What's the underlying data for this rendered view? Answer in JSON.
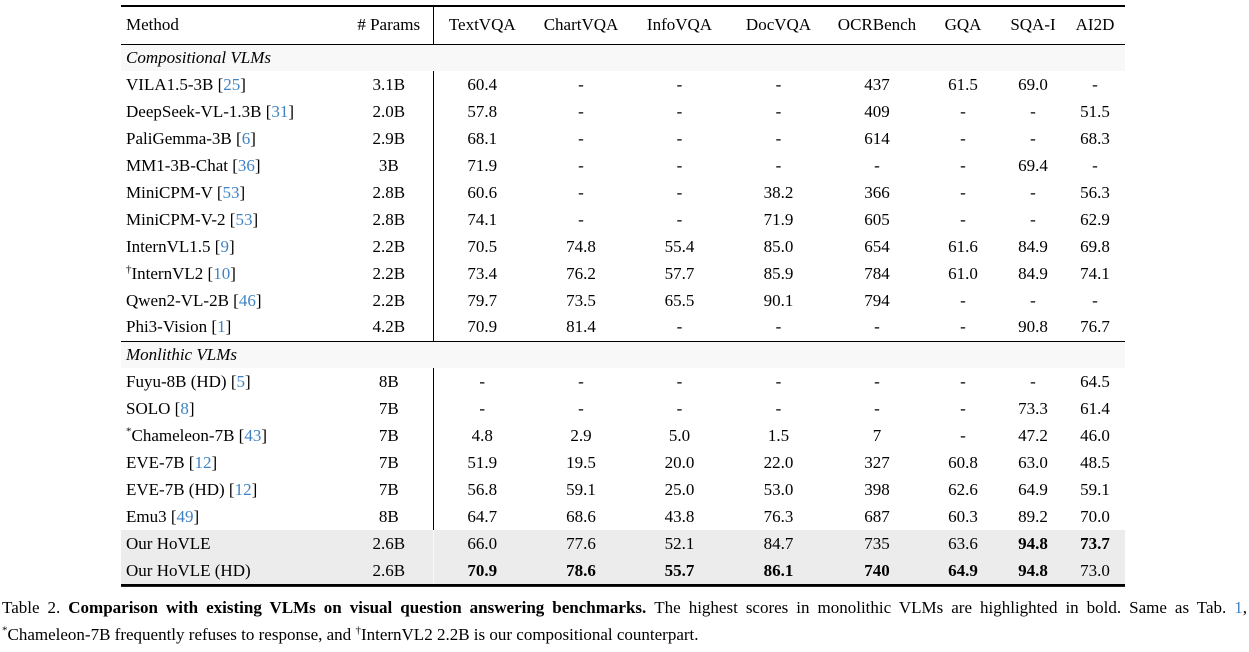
{
  "colors": {
    "citation_blue": "#4083C4",
    "highlight_row_bg": "#ececec",
    "section_row_bg": "#f8f8f8"
  },
  "table": {
    "columns": [
      "Method",
      "# Params",
      "TextVQA",
      "ChartVQA",
      "InfoVQA",
      "DocVQA",
      "OCRBench",
      "GQA",
      "SQA-I",
      "AI2D"
    ],
    "sections": [
      {
        "label": "Compositional VLMs",
        "rows": [
          {
            "method": "VILA1.5-3B",
            "sup": "",
            "cite": "25",
            "params": "3.1B",
            "scores": [
              "60.4",
              "-",
              "-",
              "-",
              "437",
              "61.5",
              "69.0",
              "-"
            ],
            "bold": [],
            "highlight": false
          },
          {
            "method": "DeepSeek-VL-1.3B",
            "sup": "",
            "cite": "31",
            "params": "2.0B",
            "scores": [
              "57.8",
              "-",
              "-",
              "-",
              "409",
              "-",
              "-",
              "51.5"
            ],
            "bold": [],
            "highlight": false
          },
          {
            "method": "PaliGemma-3B",
            "sup": "",
            "cite": "6",
            "params": "2.9B",
            "scores": [
              "68.1",
              "-",
              "-",
              "-",
              "614",
              "-",
              "-",
              "68.3"
            ],
            "bold": [],
            "highlight": false
          },
          {
            "method": "MM1-3B-Chat",
            "sup": "",
            "cite": "36",
            "params": "3B",
            "scores": [
              "71.9",
              "-",
              "-",
              "-",
              "-",
              "-",
              "69.4",
              "-"
            ],
            "bold": [],
            "highlight": false
          },
          {
            "method": "MiniCPM-V",
            "sup": "",
            "cite": "53",
            "params": "2.8B",
            "scores": [
              "60.6",
              "-",
              "-",
              "38.2",
              "366",
              "-",
              "-",
              "56.3"
            ],
            "bold": [],
            "highlight": false
          },
          {
            "method": "MiniCPM-V-2",
            "sup": "",
            "cite": "53",
            "params": "2.8B",
            "scores": [
              "74.1",
              "-",
              "-",
              "71.9",
              "605",
              "-",
              "-",
              "62.9"
            ],
            "bold": [],
            "highlight": false
          },
          {
            "method": "InternVL1.5",
            "sup": "",
            "cite": "9",
            "params": "2.2B",
            "scores": [
              "70.5",
              "74.8",
              "55.4",
              "85.0",
              "654",
              "61.6",
              "84.9",
              "69.8"
            ],
            "bold": [],
            "highlight": false
          },
          {
            "method": "InternVL2",
            "sup": "†",
            "cite": "10",
            "params": "2.2B",
            "scores": [
              "73.4",
              "76.2",
              "57.7",
              "85.9",
              "784",
              "61.0",
              "84.9",
              "74.1"
            ],
            "bold": [],
            "highlight": false
          },
          {
            "method": "Qwen2-VL-2B",
            "sup": "",
            "cite": "46",
            "params": "2.2B",
            "scores": [
              "79.7",
              "73.5",
              "65.5",
              "90.1",
              "794",
              "-",
              "-",
              "-"
            ],
            "bold": [],
            "highlight": false
          },
          {
            "method": "Phi3-Vision",
            "sup": "",
            "cite": "1",
            "params": "4.2B",
            "scores": [
              "70.9",
              "81.4",
              "-",
              "-",
              "-",
              "-",
              "90.8",
              "76.7"
            ],
            "bold": [],
            "highlight": false
          }
        ]
      },
      {
        "label": "Monlithic VLMs",
        "rows": [
          {
            "method": "Fuyu-8B (HD)",
            "sup": "",
            "cite": "5",
            "params": "8B",
            "scores": [
              "-",
              "-",
              "-",
              "-",
              "-",
              "-",
              "-",
              "64.5"
            ],
            "bold": [],
            "highlight": false
          },
          {
            "method": "SOLO",
            "sup": "",
            "cite": "8",
            "params": "7B",
            "scores": [
              "-",
              "-",
              "-",
              "-",
              "-",
              "-",
              "73.3",
              "61.4"
            ],
            "bold": [],
            "highlight": false
          },
          {
            "method": "Chameleon-7B",
            "sup": "*",
            "cite": "43",
            "params": "7B",
            "scores": [
              "4.8",
              "2.9",
              "5.0",
              "1.5",
              "7",
              "-",
              "47.2",
              "46.0"
            ],
            "bold": [],
            "highlight": false
          },
          {
            "method": "EVE-7B",
            "sup": "",
            "cite": "12",
            "params": "7B",
            "scores": [
              "51.9",
              "19.5",
              "20.0",
              "22.0",
              "327",
              "60.8",
              "63.0",
              "48.5"
            ],
            "bold": [],
            "highlight": false
          },
          {
            "method": "EVE-7B (HD)",
            "sup": "",
            "cite": "12",
            "params": "7B",
            "scores": [
              "56.8",
              "59.1",
              "25.0",
              "53.0",
              "398",
              "62.6",
              "64.9",
              "59.1"
            ],
            "bold": [],
            "highlight": false
          },
          {
            "method": "Emu3",
            "sup": "",
            "cite": "49",
            "params": "8B",
            "scores": [
              "64.7",
              "68.6",
              "43.8",
              "76.3",
              "687",
              "60.3",
              "89.2",
              "70.0"
            ],
            "bold": [],
            "highlight": false
          },
          {
            "method": "Our HoVLE",
            "sup": "",
            "cite": "",
            "params": "2.6B",
            "scores": [
              "66.0",
              "77.6",
              "52.1",
              "84.7",
              "735",
              "63.6",
              "94.8",
              "73.7"
            ],
            "bold": [
              6,
              7
            ],
            "highlight": true
          },
          {
            "method": "Our HoVLE (HD)",
            "sup": "",
            "cite": "",
            "params": "2.6B",
            "scores": [
              "70.9",
              "78.6",
              "55.7",
              "86.1",
              "740",
              "64.9",
              "94.8",
              "73.0"
            ],
            "bold": [
              0,
              1,
              2,
              3,
              4,
              5,
              6
            ],
            "highlight": true
          }
        ]
      }
    ]
  },
  "caption": {
    "tag": "Table 2.",
    "title_bold": "Comparison with existing VLMs on visual question answering benchmarks.",
    "body_1": "The highest scores in monolithic VLMs are highlighted in bold. Same as Tab. ",
    "link": "1",
    "body_2": ", ",
    "sup_star": "*",
    "body_3": "Chameleon-7B frequently refuses to response, and ",
    "sup_dagger": "†",
    "body_4": "InternVL2 2.2B is our compositional counterpart."
  }
}
